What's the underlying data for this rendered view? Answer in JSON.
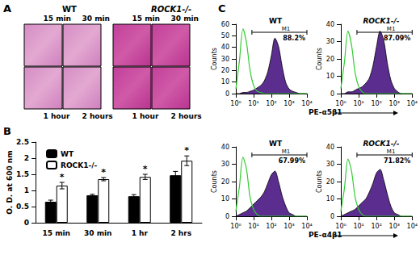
{
  "figure": {
    "panel_labels": [
      "A",
      "B",
      "C"
    ],
    "panel_a": {
      "groups": [
        {
          "title": "WT"
        },
        {
          "title": "ROCK1-/-"
        }
      ],
      "time_labels": [
        "15 min",
        "30 min",
        "1 hour",
        "2 hours"
      ]
    }
  },
  "chart_data": [
    {
      "type": "bar",
      "categories": [
        "15 min",
        "30 min",
        "1 hr",
        "2 hrs"
      ],
      "ylabel": "O. D. at 600 nm",
      "ylim": [
        0,
        2.5
      ],
      "yticks": [
        0,
        0.5,
        1,
        1.5,
        2,
        2.5
      ],
      "legend": "top-left",
      "series": [
        {
          "name": "WT",
          "color": "#000000",
          "values": [
            0.65,
            0.85,
            0.82,
            1.47
          ],
          "errors": [
            0.05,
            0.03,
            0.05,
            0.12
          ]
        },
        {
          "name": "ROCK1-/-",
          "color": "#ffffff",
          "values": [
            1.15,
            1.35,
            1.42,
            1.92
          ],
          "errors": [
            0.1,
            0.05,
            0.08,
            0.15
          ],
          "significance": [
            "*",
            "*",
            "*",
            "*"
          ]
        }
      ]
    },
    {
      "type": "area",
      "title": "WT",
      "ylabel": "Counts",
      "x_label": "PE-α5β1",
      "log": "x",
      "xlim": [
        1,
        10000
      ],
      "xticks": [
        {
          "value": 1,
          "label": "10⁰"
        },
        {
          "value": 10,
          "label": "10¹"
        },
        {
          "value": 100,
          "label": "10²"
        },
        {
          "value": 1000,
          "label": "10³"
        },
        {
          "value": 10000,
          "label": "10⁴"
        }
      ],
      "ylim": [
        0,
        60
      ],
      "yticks": [
        0,
        10,
        20,
        30,
        40,
        50,
        60
      ],
      "x": [
        1,
        1.585,
        2.512,
        3.981,
        6.31,
        10,
        15.85,
        25.12,
        39.81,
        63.1,
        100,
        158.5,
        251.2,
        398.1,
        631,
        1000,
        1585,
        2512,
        3981,
        6310,
        10000
      ],
      "series": [
        {
          "type": "line",
          "color": "#33cc33",
          "values": [
            4,
            28,
            56,
            44,
            20,
            7,
            2,
            1,
            0,
            0,
            0,
            0,
            0,
            0,
            0,
            0,
            0,
            0,
            0,
            0,
            0
          ]
        },
        {
          "type": "area",
          "color": "#5b2d8e",
          "values": [
            0,
            0,
            1,
            1,
            2,
            3,
            5,
            7,
            11,
            19,
            33,
            48,
            41,
            24,
            10,
            4,
            2,
            1,
            0,
            0,
            0
          ]
        }
      ],
      "gate": {
        "label": "M1",
        "range": [
          8,
          10000
        ],
        "text": "88.2%"
      }
    },
    {
      "type": "area",
      "title": "ROCK1-/-",
      "ylabel": "Counts",
      "log": "x",
      "xlim": [
        1,
        10000
      ],
      "xticks": [
        {
          "value": 1,
          "label": "10⁰"
        },
        {
          "value": 10,
          "label": "10¹"
        },
        {
          "value": 100,
          "label": "10²"
        },
        {
          "value": 1000,
          "label": "10³"
        },
        {
          "value": 10000,
          "label": "10⁴"
        }
      ],
      "ylim": [
        0,
        40
      ],
      "yticks": [
        0,
        10,
        20,
        30,
        40
      ],
      "x": [
        1,
        1.585,
        2.512,
        3.981,
        6.31,
        10,
        15.85,
        25.12,
        39.81,
        63.1,
        100,
        158.5,
        251.2,
        398.1,
        631,
        1000,
        1585,
        2512,
        3981,
        6310,
        10000
      ],
      "series": [
        {
          "type": "line",
          "color": "#33cc33",
          "values": [
            3,
            18,
            36,
            28,
            12,
            4,
            1,
            0,
            0,
            0,
            0,
            0,
            0,
            0,
            0,
            0,
            0,
            0,
            0,
            0,
            0
          ]
        },
        {
          "type": "area",
          "color": "#5b2d8e",
          "values": [
            0,
            0,
            1,
            1,
            2,
            3,
            4,
            6,
            9,
            16,
            27,
            36,
            31,
            18,
            8,
            3,
            1,
            0,
            0,
            0,
            0
          ]
        }
      ],
      "gate": {
        "label": "M1",
        "range": [
          8,
          10000
        ],
        "text": "87.09%"
      }
    },
    {
      "type": "area",
      "title": "WT",
      "ylabel": "Counts",
      "x_label": "PE-α4β1",
      "log": "x",
      "xlim": [
        1,
        10000
      ],
      "xticks": [
        {
          "value": 1,
          "label": "10⁰"
        },
        {
          "value": 10,
          "label": "10¹"
        },
        {
          "value": 100,
          "label": "10²"
        },
        {
          "value": 1000,
          "label": "10³"
        },
        {
          "value": 10000,
          "label": "10⁴"
        }
      ],
      "ylim": [
        0,
        40
      ],
      "yticks": [
        0,
        10,
        20,
        30,
        40
      ],
      "x": [
        1,
        1.585,
        2.512,
        3.981,
        6.31,
        10,
        15.85,
        25.12,
        39.81,
        63.1,
        100,
        158.5,
        251.2,
        398.1,
        631,
        1000,
        1585,
        2512,
        3981,
        6310,
        10000
      ],
      "series": [
        {
          "type": "line",
          "color": "#33cc33",
          "values": [
            3,
            17,
            34,
            27,
            11,
            4,
            1,
            0,
            0,
            0,
            0,
            0,
            0,
            0,
            0,
            0,
            0,
            0,
            0,
            0,
            0
          ]
        },
        {
          "type": "area",
          "color": "#5b2d8e",
          "values": [
            0,
            1,
            2,
            3,
            5,
            7,
            9,
            11,
            14,
            19,
            24,
            26,
            20,
            12,
            6,
            2,
            1,
            0,
            0,
            0,
            0
          ]
        }
      ],
      "gate": {
        "label": "M1",
        "range": [
          8,
          10000
        ],
        "text": "67.99%"
      }
    },
    {
      "type": "area",
      "title": "ROCK1-/-",
      "ylabel": "Counts",
      "log": "x",
      "xlim": [
        1,
        10000
      ],
      "xticks": [
        {
          "value": 1,
          "label": "10⁰"
        },
        {
          "value": 10,
          "label": "10¹"
        },
        {
          "value": 100,
          "label": "10²"
        },
        {
          "value": 1000,
          "label": "10³"
        },
        {
          "value": 10000,
          "label": "10⁴"
        }
      ],
      "ylim": [
        0,
        40
      ],
      "yticks": [
        0,
        10,
        20,
        30,
        40
      ],
      "x": [
        1,
        1.585,
        2.512,
        3.981,
        6.31,
        10,
        15.85,
        25.12,
        39.81,
        63.1,
        100,
        158.5,
        251.2,
        398.1,
        631,
        1000,
        1585,
        2512,
        3981,
        6310,
        10000
      ],
      "series": [
        {
          "type": "line",
          "color": "#33cc33",
          "values": [
            3,
            16,
            33,
            26,
            11,
            4,
            1,
            0,
            0,
            0,
            0,
            0,
            0,
            0,
            0,
            0,
            0,
            0,
            0,
            0,
            0
          ]
        },
        {
          "type": "area",
          "color": "#5b2d8e",
          "values": [
            0,
            1,
            2,
            3,
            4,
            6,
            8,
            10,
            14,
            19,
            25,
            27,
            21,
            13,
            6,
            2,
            1,
            0,
            0,
            0,
            0
          ]
        }
      ],
      "gate": {
        "label": "M1",
        "range": [
          8,
          10000
        ],
        "text": "71.82%"
      }
    }
  ]
}
